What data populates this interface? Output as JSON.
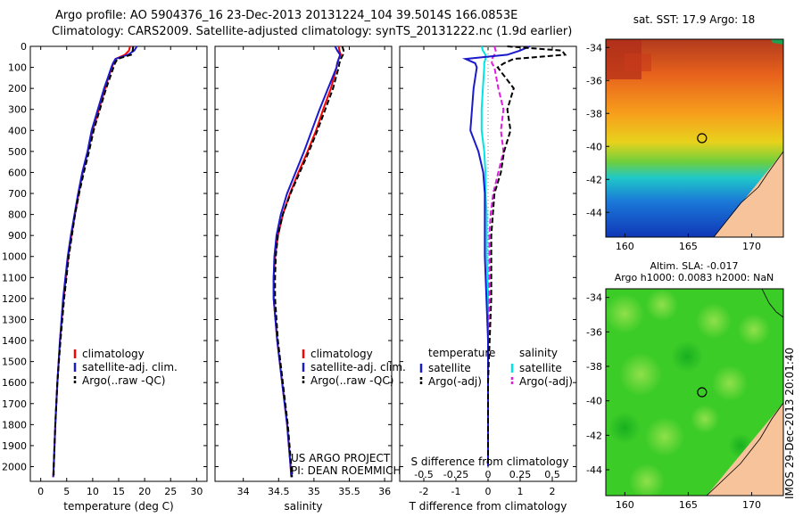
{
  "titles": {
    "line1": "Argo profile: AO 5904376_16 23-Dec-2013 20131224_104 39.5014S 166.0853E",
    "line2": "Climatology: CARS2009. Satellite-adjusted climatology: synTS_20131222.nc (1.9d earlier)"
  },
  "footer": {
    "project": "US ARGO PROJECT",
    "pi": "PI: DEAN ROEMMICH"
  },
  "side_text": "IMOS 29-Dec-2013 20:01:40",
  "colors": {
    "climatology": "#ff0000",
    "satellite": "#1a1acc",
    "argo": "#000000",
    "sal_satellite": "#00e5e5",
    "sal_argo": "#e01ce0"
  },
  "chart_data": [
    {
      "id": "temperature",
      "type": "line",
      "xlabel": "temperature (deg C)",
      "ylabel": "",
      "xlim": [
        -2,
        32
      ],
      "ylim": [
        2070,
        0
      ],
      "xticks": [
        0,
        5,
        10,
        15,
        20,
        25,
        30
      ],
      "yticks": [
        0,
        100,
        200,
        300,
        400,
        500,
        600,
        700,
        800,
        900,
        1000,
        1100,
        1200,
        1300,
        1400,
        1500,
        1600,
        1700,
        1800,
        1900,
        2000
      ],
      "legend": [
        "climatology",
        "satellite-adj. clim.",
        "Argo(..raw -QC)"
      ],
      "legend_position": "lower-right",
      "depth": [
        0,
        20,
        40,
        60,
        80,
        100,
        150,
        200,
        300,
        400,
        500,
        600,
        700,
        800,
        900,
        1000,
        1200,
        1400,
        1600,
        1800,
        2000,
        2050
      ],
      "series": [
        {
          "name": "climatology",
          "values": [
            17.2,
            17.0,
            16.2,
            14.4,
            14.0,
            13.7,
            13.0,
            12.4,
            11.2,
            10.0,
            9.1,
            8.1,
            7.3,
            6.6,
            5.9,
            5.3,
            4.4,
            3.7,
            3.2,
            2.8,
            2.5,
            2.4
          ]
        },
        {
          "name": "satellite-adj. clim.",
          "values": [
            18.5,
            18.0,
            16.8,
            14.4,
            13.9,
            13.6,
            12.9,
            12.2,
            11.0,
            9.8,
            9.0,
            8.0,
            7.2,
            6.5,
            5.8,
            5.2,
            4.3,
            3.7,
            3.2,
            2.8,
            2.5,
            2.4
          ]
        },
        {
          "name": "Argo(..raw -QC)",
          "values": [
            17.8,
            17.7,
            17.4,
            14.8,
            14.3,
            14.0,
            13.3,
            12.6,
            11.4,
            10.2,
            9.3,
            8.3,
            7.4,
            6.6,
            6.0,
            5.4,
            4.5,
            3.8,
            3.2,
            2.8,
            2.5,
            2.5
          ]
        }
      ]
    },
    {
      "id": "salinity",
      "type": "line",
      "xlabel": "salinity",
      "ylabel": "",
      "xlim": [
        33.6,
        36.1
      ],
      "ylim": [
        2070,
        0
      ],
      "xticks": [
        34,
        34.5,
        35,
        35.5,
        36
      ],
      "legend": [
        "climatology",
        "satellite-adj. clim.",
        "Argo(..raw -QC)"
      ],
      "legend_position": "lower-right",
      "depth": [
        0,
        20,
        40,
        60,
        80,
        100,
        150,
        200,
        300,
        400,
        500,
        600,
        700,
        800,
        900,
        1000,
        1100,
        1200,
        1400,
        1600,
        1800,
        2000,
        2050
      ],
      "series": [
        {
          "name": "climatology",
          "values": [
            35.35,
            35.36,
            35.38,
            35.35,
            35.33,
            35.32,
            35.28,
            35.24,
            35.13,
            35.03,
            34.91,
            34.78,
            34.66,
            34.56,
            34.49,
            34.45,
            34.43,
            34.43,
            34.48,
            34.55,
            34.62,
            34.67,
            34.68
          ]
        },
        {
          "name": "satellite-adj. clim.",
          "values": [
            35.3,
            35.33,
            35.37,
            35.35,
            35.33,
            35.32,
            35.26,
            35.2,
            35.08,
            34.97,
            34.86,
            34.74,
            34.62,
            34.53,
            34.47,
            34.44,
            34.43,
            34.43,
            34.48,
            34.55,
            34.62,
            34.67,
            34.68
          ]
        },
        {
          "name": "Argo(..raw -QC)",
          "values": [
            35.4,
            35.42,
            35.41,
            35.38,
            35.36,
            35.35,
            35.31,
            35.27,
            35.16,
            35.05,
            34.93,
            34.8,
            34.67,
            34.56,
            34.49,
            34.46,
            34.45,
            34.45,
            34.49,
            34.56,
            34.63,
            34.68,
            34.69
          ]
        }
      ]
    },
    {
      "id": "difference",
      "type": "line",
      "xlabel": "T difference from climatology",
      "x2label": "S difference from climatology",
      "xlim": [
        -2.75,
        2.75
      ],
      "ylim": [
        2070,
        0
      ],
      "xticks": [
        -2,
        -1,
        0,
        1,
        2
      ],
      "x2ticks": [
        -0.5,
        -0.25,
        0,
        0.25,
        0.5
      ],
      "x2tick_labels": [
        "-0.5",
        "-0.25",
        "0",
        "0.25",
        "0.5"
      ],
      "legend_temperature_title": "temperature",
      "legend_salinity_title": "salinity",
      "legend_temperature": [
        "satellite",
        "Argo(-adj)"
      ],
      "legend_salinity": [
        "satellite",
        "Argo(-adj)"
      ],
      "depth": [
        0,
        20,
        40,
        60,
        80,
        100,
        200,
        300,
        400,
        500,
        600,
        700,
        800,
        900,
        1000,
        1200,
        1400,
        1600,
        1800,
        2000
      ],
      "series": [
        {
          "name": "T satellite",
          "values": [
            1.3,
            1.0,
            0.6,
            -0.7,
            -0.4,
            -0.35,
            -0.45,
            -0.5,
            -0.55,
            -0.3,
            -0.15,
            -0.1,
            -0.1,
            -0.1,
            -0.1,
            -0.05,
            0,
            0,
            0,
            0
          ]
        },
        {
          "name": "T Argo(-adj)",
          "values": [
            0.6,
            2.3,
            2.4,
            0.8,
            0.5,
            0.3,
            0.8,
            0.6,
            0.7,
            0.5,
            0.4,
            0.2,
            0.15,
            0.1,
            0.1,
            0.1,
            0.05,
            0,
            0,
            0
          ]
        },
        {
          "name": "S satellite",
          "values": [
            -0.05,
            -0.04,
            -0.02,
            -0.02,
            -0.03,
            -0.03,
            -0.04,
            -0.05,
            -0.05,
            -0.03,
            -0.02,
            -0.02,
            -0.01,
            -0.01,
            -0.01,
            0,
            0,
            0,
            0,
            0
          ]
        },
        {
          "name": "S Argo(-adj)",
          "values": [
            0.05,
            0.06,
            0.05,
            0.03,
            0.03,
            0.05,
            0.08,
            0.12,
            0.1,
            0.12,
            0.08,
            0.04,
            0.02,
            0.01,
            0.01,
            0.01,
            0,
            0,
            0,
            0
          ]
        }
      ]
    }
  ],
  "maps": [
    {
      "id": "sst",
      "title": "sat. SST: 17.9 Argo: 18",
      "xticks": [
        160,
        165,
        170
      ],
      "yticks": [
        -34,
        -36,
        -38,
        -40,
        -42,
        -44
      ],
      "xlim": [
        158.5,
        172.5
      ],
      "ylim": [
        -45.5,
        -33.5
      ],
      "argo_lon": 166.0853,
      "argo_lat": -39.5014
    },
    {
      "id": "sla",
      "title": "Altim. SLA: -0.017",
      "subtitle": "Argo h1000: 0.0083 h2000: NaN",
      "xticks": [
        160,
        165,
        170
      ],
      "yticks": [
        -34,
        -36,
        -38,
        -40,
        -42,
        -44
      ],
      "xlim": [
        158.5,
        172.5
      ],
      "ylim": [
        -45.5,
        -33.5
      ],
      "argo_lon": 166.0853,
      "argo_lat": -39.5014
    }
  ]
}
